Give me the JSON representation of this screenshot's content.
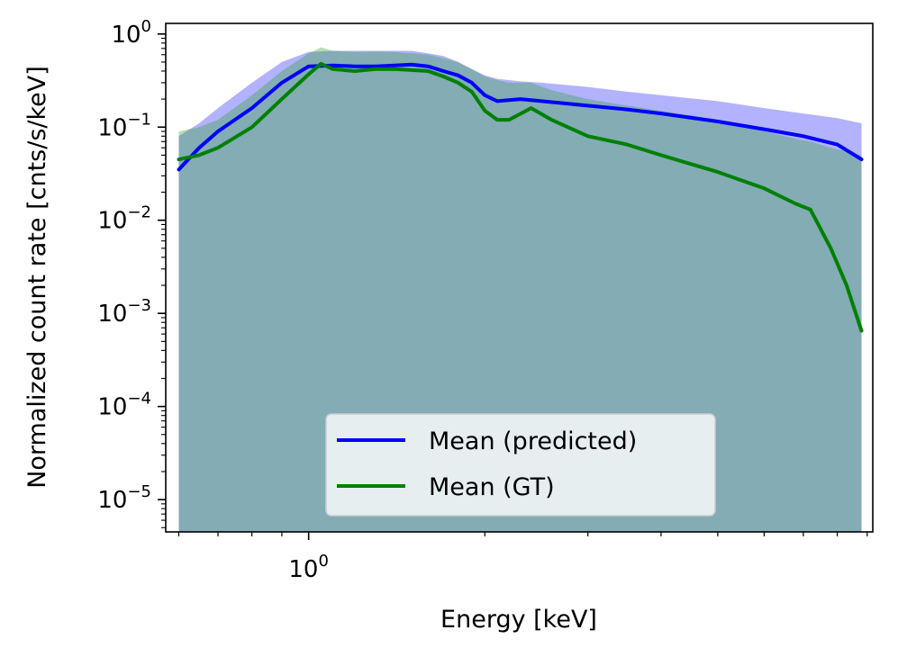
{
  "chart_data": {
    "type": "area",
    "xlabel": "Energy [keV]",
    "ylabel": "Normalized count rate [cnts/s/keV]",
    "xscale": "log",
    "yscale": "log",
    "xlim": [
      0.57,
      9.2
    ],
    "ylim": [
      4.5e-06,
      1.3
    ],
    "x_major_ticks": [
      {
        "value": 1,
        "base": "10",
        "exp": "0"
      }
    ],
    "x_minor_ticks": [
      0.6,
      0.7,
      0.8,
      0.9,
      2,
      3,
      4,
      5,
      6,
      7,
      8,
      9
    ],
    "y_major_ticks": [
      {
        "value": 1,
        "base": "10",
        "exp": "0"
      },
      {
        "value": 0.1,
        "base": "10",
        "exp": "−1"
      },
      {
        "value": 0.01,
        "base": "10",
        "exp": "−2"
      },
      {
        "value": 0.001,
        "base": "10",
        "exp": "−3"
      },
      {
        "value": 0.0001,
        "base": "10",
        "exp": "−4"
      },
      {
        "value": 1e-05,
        "base": "10",
        "exp": "−5"
      }
    ],
    "grid": false,
    "legend_position": "lower-center",
    "series": [
      {
        "name": "Mean (predicted)",
        "color": "#0000ff",
        "band_color": "#0000ff",
        "band_opacity": 0.3,
        "x": [
          0.6,
          0.65,
          0.7,
          0.8,
          0.9,
          1.0,
          1.1,
          1.2,
          1.3,
          1.4,
          1.5,
          1.6,
          1.7,
          1.8,
          1.9,
          2.0,
          2.1,
          2.3,
          2.5,
          3.0,
          3.5,
          4.0,
          5.0,
          6.0,
          7.0,
          8.0,
          8.8
        ],
        "mean": [
          0.035,
          0.06,
          0.09,
          0.16,
          0.3,
          0.45,
          0.46,
          0.45,
          0.45,
          0.46,
          0.47,
          0.45,
          0.4,
          0.36,
          0.3,
          0.22,
          0.19,
          0.2,
          0.19,
          0.17,
          0.155,
          0.14,
          0.115,
          0.095,
          0.08,
          0.065,
          0.045
        ],
        "band_upper": [
          0.08,
          0.11,
          0.16,
          0.3,
          0.5,
          0.64,
          0.66,
          0.66,
          0.66,
          0.66,
          0.66,
          0.62,
          0.58,
          0.5,
          0.42,
          0.36,
          0.33,
          0.31,
          0.3,
          0.27,
          0.24,
          0.22,
          0.19,
          0.16,
          0.14,
          0.125,
          0.11
        ],
        "band_lower": [
          4.5e-06,
          4.5e-06,
          4.5e-06,
          4.5e-06,
          4.5e-06,
          4.5e-06,
          4.5e-06,
          4.5e-06,
          4.5e-06,
          4.5e-06,
          4.5e-06,
          4.5e-06,
          4.5e-06,
          4.5e-06,
          4.5e-06,
          4.5e-06,
          4.5e-06,
          4.5e-06,
          4.5e-06,
          4.5e-06,
          4.5e-06,
          4.5e-06,
          4.5e-06,
          4.5e-06,
          4.5e-06,
          4.5e-06,
          4.5e-06
        ]
      },
      {
        "name": "Mean (GT)",
        "color": "#008000",
        "band_color": "#2ca02c",
        "band_opacity": 0.35,
        "x": [
          0.6,
          0.65,
          0.7,
          0.8,
          0.9,
          1.0,
          1.05,
          1.1,
          1.2,
          1.3,
          1.4,
          1.5,
          1.6,
          1.7,
          1.8,
          1.9,
          2.0,
          2.1,
          2.2,
          2.4,
          2.6,
          3.0,
          3.5,
          4.0,
          5.0,
          6.0,
          6.8,
          7.2,
          7.8,
          8.3,
          8.8
        ],
        "mean": [
          0.045,
          0.05,
          0.06,
          0.1,
          0.2,
          0.37,
          0.48,
          0.42,
          0.4,
          0.42,
          0.42,
          0.41,
          0.4,
          0.35,
          0.3,
          0.24,
          0.15,
          0.12,
          0.12,
          0.16,
          0.12,
          0.08,
          0.065,
          0.05,
          0.033,
          0.022,
          0.015,
          0.013,
          0.005,
          0.002,
          0.00065
        ],
        "band_upper": [
          0.09,
          0.1,
          0.12,
          0.22,
          0.4,
          0.62,
          0.72,
          0.66,
          0.64,
          0.65,
          0.64,
          0.62,
          0.6,
          0.55,
          0.5,
          0.42,
          0.35,
          0.32,
          0.3,
          0.3,
          0.25,
          0.2,
          0.17,
          0.15,
          0.12,
          0.09,
          0.075,
          0.07,
          0.06,
          0.055,
          0.05
        ],
        "band_lower": [
          4.5e-06,
          4.5e-06,
          4.5e-06,
          4.5e-06,
          4.5e-06,
          4.5e-06,
          4.5e-06,
          4.5e-06,
          4.5e-06,
          4.5e-06,
          4.5e-06,
          4.5e-06,
          4.5e-06,
          4.5e-06,
          4.5e-06,
          4.5e-06,
          4.5e-06,
          4.5e-06,
          4.5e-06,
          4.5e-06,
          4.5e-06,
          4.5e-06,
          4.5e-06,
          4.5e-06,
          4.5e-06,
          4.5e-06,
          4.5e-06,
          4.5e-06,
          4.5e-06,
          4.5e-06,
          4.5e-06
        ]
      }
    ]
  }
}
